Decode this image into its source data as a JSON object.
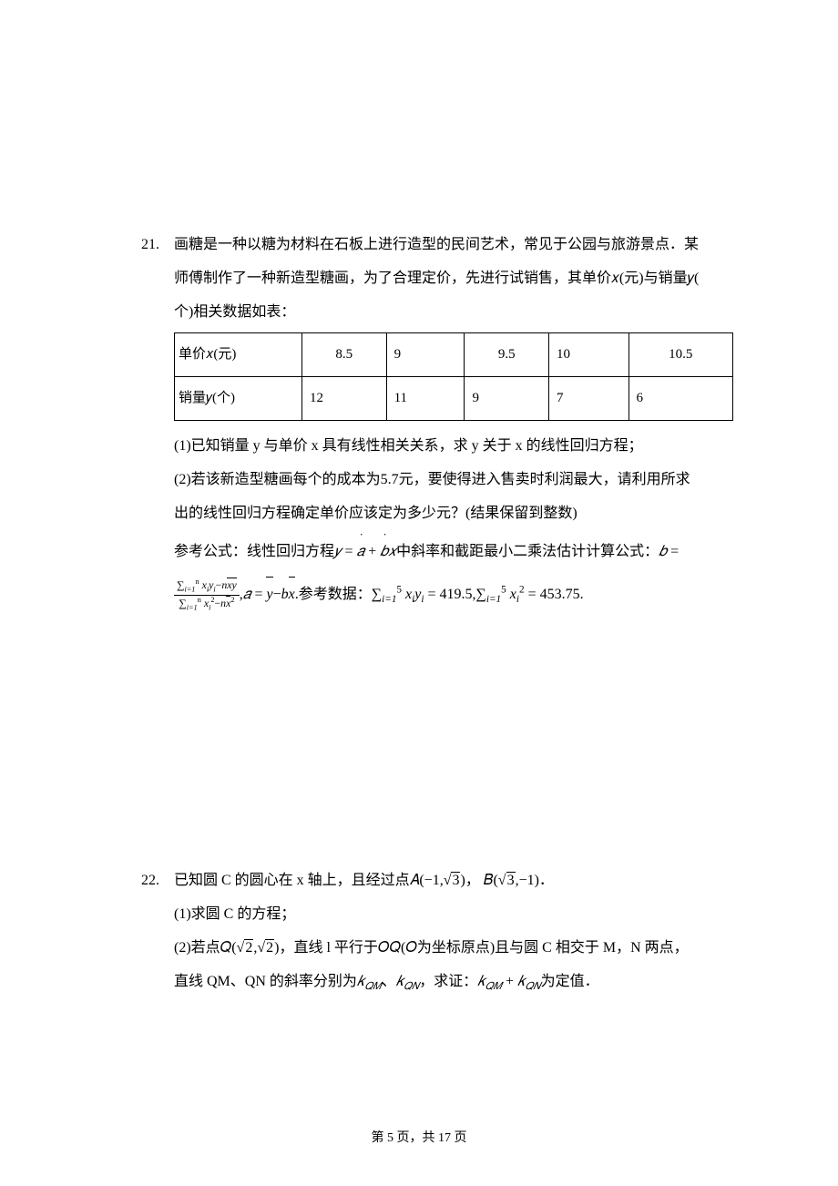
{
  "page": {
    "current": "5",
    "total": "17",
    "prefix": "第 ",
    "mid": " 页，共 ",
    "suffix": " 页"
  },
  "problems": {
    "p21": {
      "num": "21.",
      "intro1": "画糖是一种以糖为材料在石板上进行造型的民间艺术，常见于公园与旅游景点．某",
      "intro2": "师傅制作了一种新造型糖画，为了合理定价，先进行试销售，其单价𝑥(元)与销量𝑦(",
      "intro3": "个)相关数据如表：",
      "table": {
        "rowX": {
          "label": "单价𝑥(元)",
          "c1": "8.5",
          "c2": "9",
          "c3": "9.5",
          "c4": "10",
          "c5": "10.5"
        },
        "rowY": {
          "label": "销量𝑦(个)",
          "c1": "12",
          "c2": "11",
          "c3": "9",
          "c4": "7",
          "c5": "6"
        }
      },
      "q1": "(1)已知销量 y 与单价 x 具有线性相关关系，求 y 关于 x 的线性回归方程；",
      "q2a": "(2)若该新造型糖画每个的成本为5.7元，要使得进入售卖时利润最大，请利用所求",
      "q2b": "出的线性回归方程确定单价应该定为多少元？(结果保留到整数)",
      "formula_prefix": "参考公式：线性回归方程",
      "formula_mid": "中斜率和截距最小二乘法估计计算公式：",
      "data_prefix": "参考数据：",
      "sum_xy": "419.5",
      "sum_x2": "453.75"
    },
    "p22": {
      "num": "22.",
      "l1a": "已知圆 C 的圆心在 x 轴上，且经过点",
      "l1_A": "𝐴(−1,",
      "l1_Av": "3",
      "l1_Ae": ")，",
      "l1_B": "𝐵(",
      "l1_Bv": "3",
      "l1_Be": ",−1)．",
      "q1": "(1)求圆 C 的方程；",
      "q2a": "(2)若点",
      "q2_Q": "𝑄(",
      "q2_Qa": "2",
      "q2_Qb": ",",
      "q2_Qc": "2",
      "q2_Qe": ")，",
      "q2b": "直线 l 平行于𝑂𝑄(𝑂为坐标原点)且与圆 C 相交于 M，N 两点，",
      "q3a": "直线 QM、QN 的斜率分别为",
      "q3_k1": "𝑘",
      "q3_k1s": "𝑄𝑀",
      "q3_sep": "、",
      "q3_k2": "𝑘",
      "q3_k2s": "𝑄𝑁",
      "q3b": "，求证：",
      "q3_sum": " + ",
      "q3c": "为定值．"
    }
  }
}
